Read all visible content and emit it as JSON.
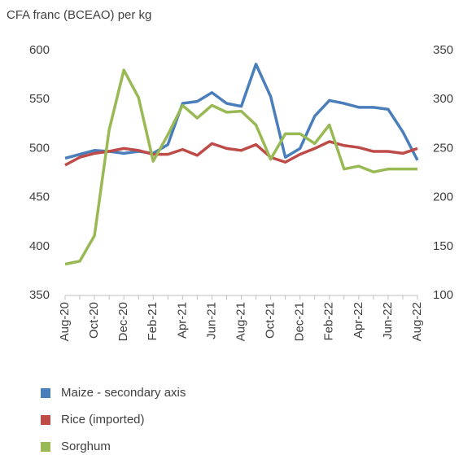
{
  "chart_data": {
    "type": "line",
    "title": "CFA franc (BCEAO) per kg",
    "categories": [
      "Aug-20",
      null,
      "Oct-20",
      null,
      "Dec-20",
      null,
      "Feb-21",
      null,
      "Apr-21",
      null,
      "Jun-21",
      null,
      "Aug-21",
      null,
      "Oct-21",
      null,
      "Dec-21",
      null,
      "Feb-22",
      null,
      "Apr-22",
      null,
      "Jun-22",
      null,
      "Aug-22"
    ],
    "series": [
      {
        "name": "Maize - secondary axis",
        "color": "#4a7ebb",
        "axis": "y2",
        "values": [
          240,
          244,
          248,
          247,
          245,
          247,
          245,
          254,
          296,
          298,
          307,
          296,
          293,
          336,
          303,
          241,
          250,
          283,
          299,
          296,
          292,
          292,
          290,
          267,
          238
        ]
      },
      {
        "name": "Rice (imported)",
        "color": "#be4b48",
        "values": [
          483,
          491,
          495,
          497,
          500,
          498,
          494,
          494,
          499,
          493,
          505,
          500,
          498,
          504,
          491,
          486,
          494,
          500,
          507,
          503,
          501,
          497,
          497,
          495,
          500
        ]
      },
      {
        "name": "Sorghum",
        "color": "#98b954",
        "values": [
          382,
          385,
          411,
          519,
          580,
          552,
          487,
          514,
          544,
          531,
          544,
          537,
          538,
          524,
          489,
          515,
          515,
          505,
          524,
          479,
          482,
          476,
          479,
          479,
          479
        ]
      }
    ],
    "ylim": [
      350,
      600
    ],
    "yticks": [
      350,
      400,
      450,
      500,
      550,
      600
    ],
    "y2lim": [
      100,
      350
    ],
    "y2ticks": [
      100,
      150,
      200,
      250,
      300,
      350
    ],
    "grid": false,
    "legend": "bottom"
  }
}
